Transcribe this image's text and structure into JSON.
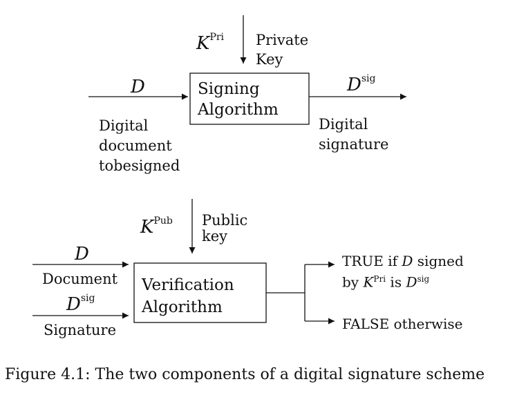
{
  "signing": {
    "input_symbol": "D",
    "input_label": [
      "Digital",
      "document",
      "tobesigned"
    ],
    "key_symbol": "K",
    "key_superscript": "Pri",
    "key_label": [
      "Private",
      "Key"
    ],
    "box_label": [
      "Signing",
      "Algorithm"
    ],
    "output_symbol": "D",
    "output_superscript": "sig",
    "output_label": [
      "Digital",
      "signature"
    ]
  },
  "verification": {
    "input1_symbol": "D",
    "input1_label": "Document",
    "input2_symbol": "D",
    "input2_superscript": "sig",
    "input2_label": "Signature",
    "key_symbol": "K",
    "key_superscript": "Pub",
    "key_label": [
      "Public",
      "key"
    ],
    "box_label": [
      "Verification",
      "Algorithm"
    ],
    "result_true": {
      "line1_a": "TRUE if ",
      "line1_sym": "D",
      "line1_b": " signed",
      "line2_a": "by ",
      "line2_sym": "K",
      "line2_sup": "Pri",
      "line2_b": " is ",
      "line2_sym2": "D",
      "line2_sup2": "sig"
    },
    "result_false": "FALSE otherwise"
  },
  "caption": "Figure 4.1: The two components of a digital signature scheme"
}
